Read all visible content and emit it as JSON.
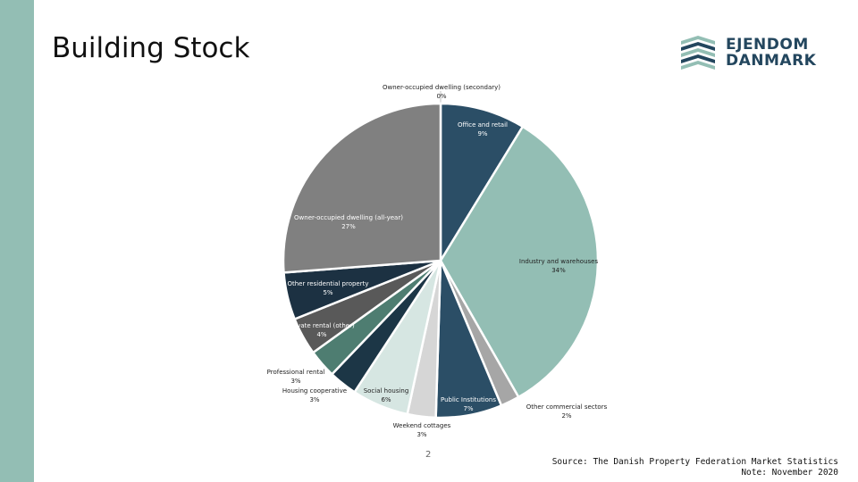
{
  "slide": {
    "title": "Building Stock",
    "page_number": "2",
    "source_line": "Source: The Danish Property Federation Market Statistics",
    "note_line": "Note: November 2020"
  },
  "logo": {
    "line1": "EJENDOM",
    "line2": "DANMARK",
    "colors": {
      "text": "#23465e",
      "mark_light": "#93beb4",
      "mark_dark": "#23465e"
    }
  },
  "chart_data": {
    "type": "pie",
    "start": "top",
    "direction": "clockwise",
    "slices": [
      {
        "label": "Owner-occupied dwelling (secondary)",
        "value": 0,
        "pct": "0%",
        "color": "#ffffff"
      },
      {
        "label": "Office and retail",
        "value": 9,
        "pct": "9%",
        "color": "#2b4e66"
      },
      {
        "label": "Industry and warehouses",
        "value": 34,
        "pct": "34%",
        "color": "#93beb4"
      },
      {
        "label": "Other commercial sectors",
        "value": 2,
        "pct": "2%",
        "color": "#a6a6a6"
      },
      {
        "label": "Public Institutions",
        "value": 7,
        "pct": "7%",
        "color": "#2b4e66"
      },
      {
        "label": "Weekend cottages",
        "value": 3,
        "pct": "3%",
        "color": "#d6d6d6"
      },
      {
        "label": "Social housing",
        "value": 6,
        "pct": "6%",
        "color": "#d6e6e2"
      },
      {
        "label": "Housing cooperative",
        "value": 3,
        "pct": "3%",
        "color": "#1c3646"
      },
      {
        "label": "Professional rental",
        "value": 3,
        "pct": "3%",
        "color": "#4e7d71"
      },
      {
        "label": "Private rental (other)",
        "value": 4,
        "pct": "4%",
        "color": "#595959"
      },
      {
        "label": "Other residential property",
        "value": 5,
        "pct": "5%",
        "color": "#1c3142"
      },
      {
        "label": "Owner-occupied dwelling (all-year)",
        "value": 27,
        "pct": "27%",
        "color": "#808080"
      }
    ]
  }
}
